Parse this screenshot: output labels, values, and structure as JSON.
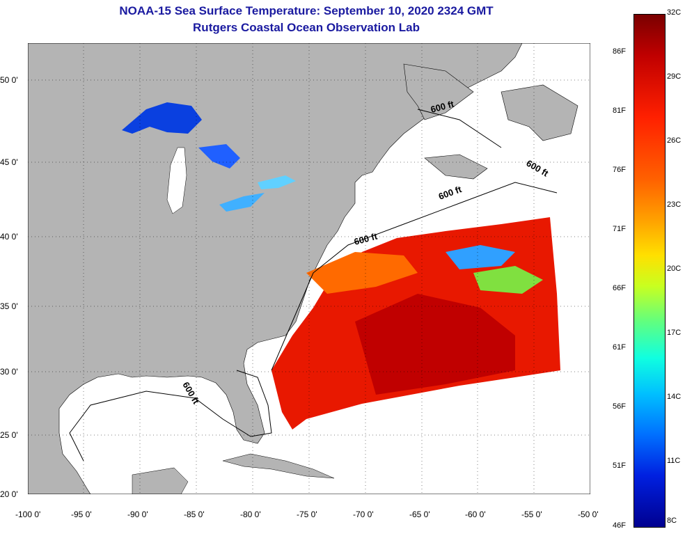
{
  "title": "NOAA-15 Sea Surface Temperature:  September 10, 2020 2324 GMT",
  "subtitle": "Rutgers Coastal Ocean Observation Lab",
  "contour_label": "600 ft",
  "x_ticks": [
    "-100 0'",
    "-95 0'",
    "-90 0'",
    "-85 0'",
    "-80 0'",
    "-75 0'",
    "-70 0'",
    "-65 0'",
    "-60 0'",
    "-55 0'",
    "-50 0'"
  ],
  "y_ticks": [
    "50 0'",
    "45 0'",
    "40 0'",
    "35 0'",
    "30 0'",
    "25 0'",
    "20 0'"
  ],
  "colorbar": {
    "celsius": [
      "32C",
      "29C",
      "26C",
      "23C",
      "20C",
      "17C",
      "14C",
      "11C",
      "8C"
    ],
    "fahrenheit": [
      "86F",
      "81F",
      "76F",
      "71F",
      "66F",
      "61F",
      "56F",
      "51F",
      "46F"
    ]
  },
  "colors": {
    "title": "#1a1aa0",
    "land": "#b4b4b4",
    "ocean_cloud": "#ffffff"
  }
}
